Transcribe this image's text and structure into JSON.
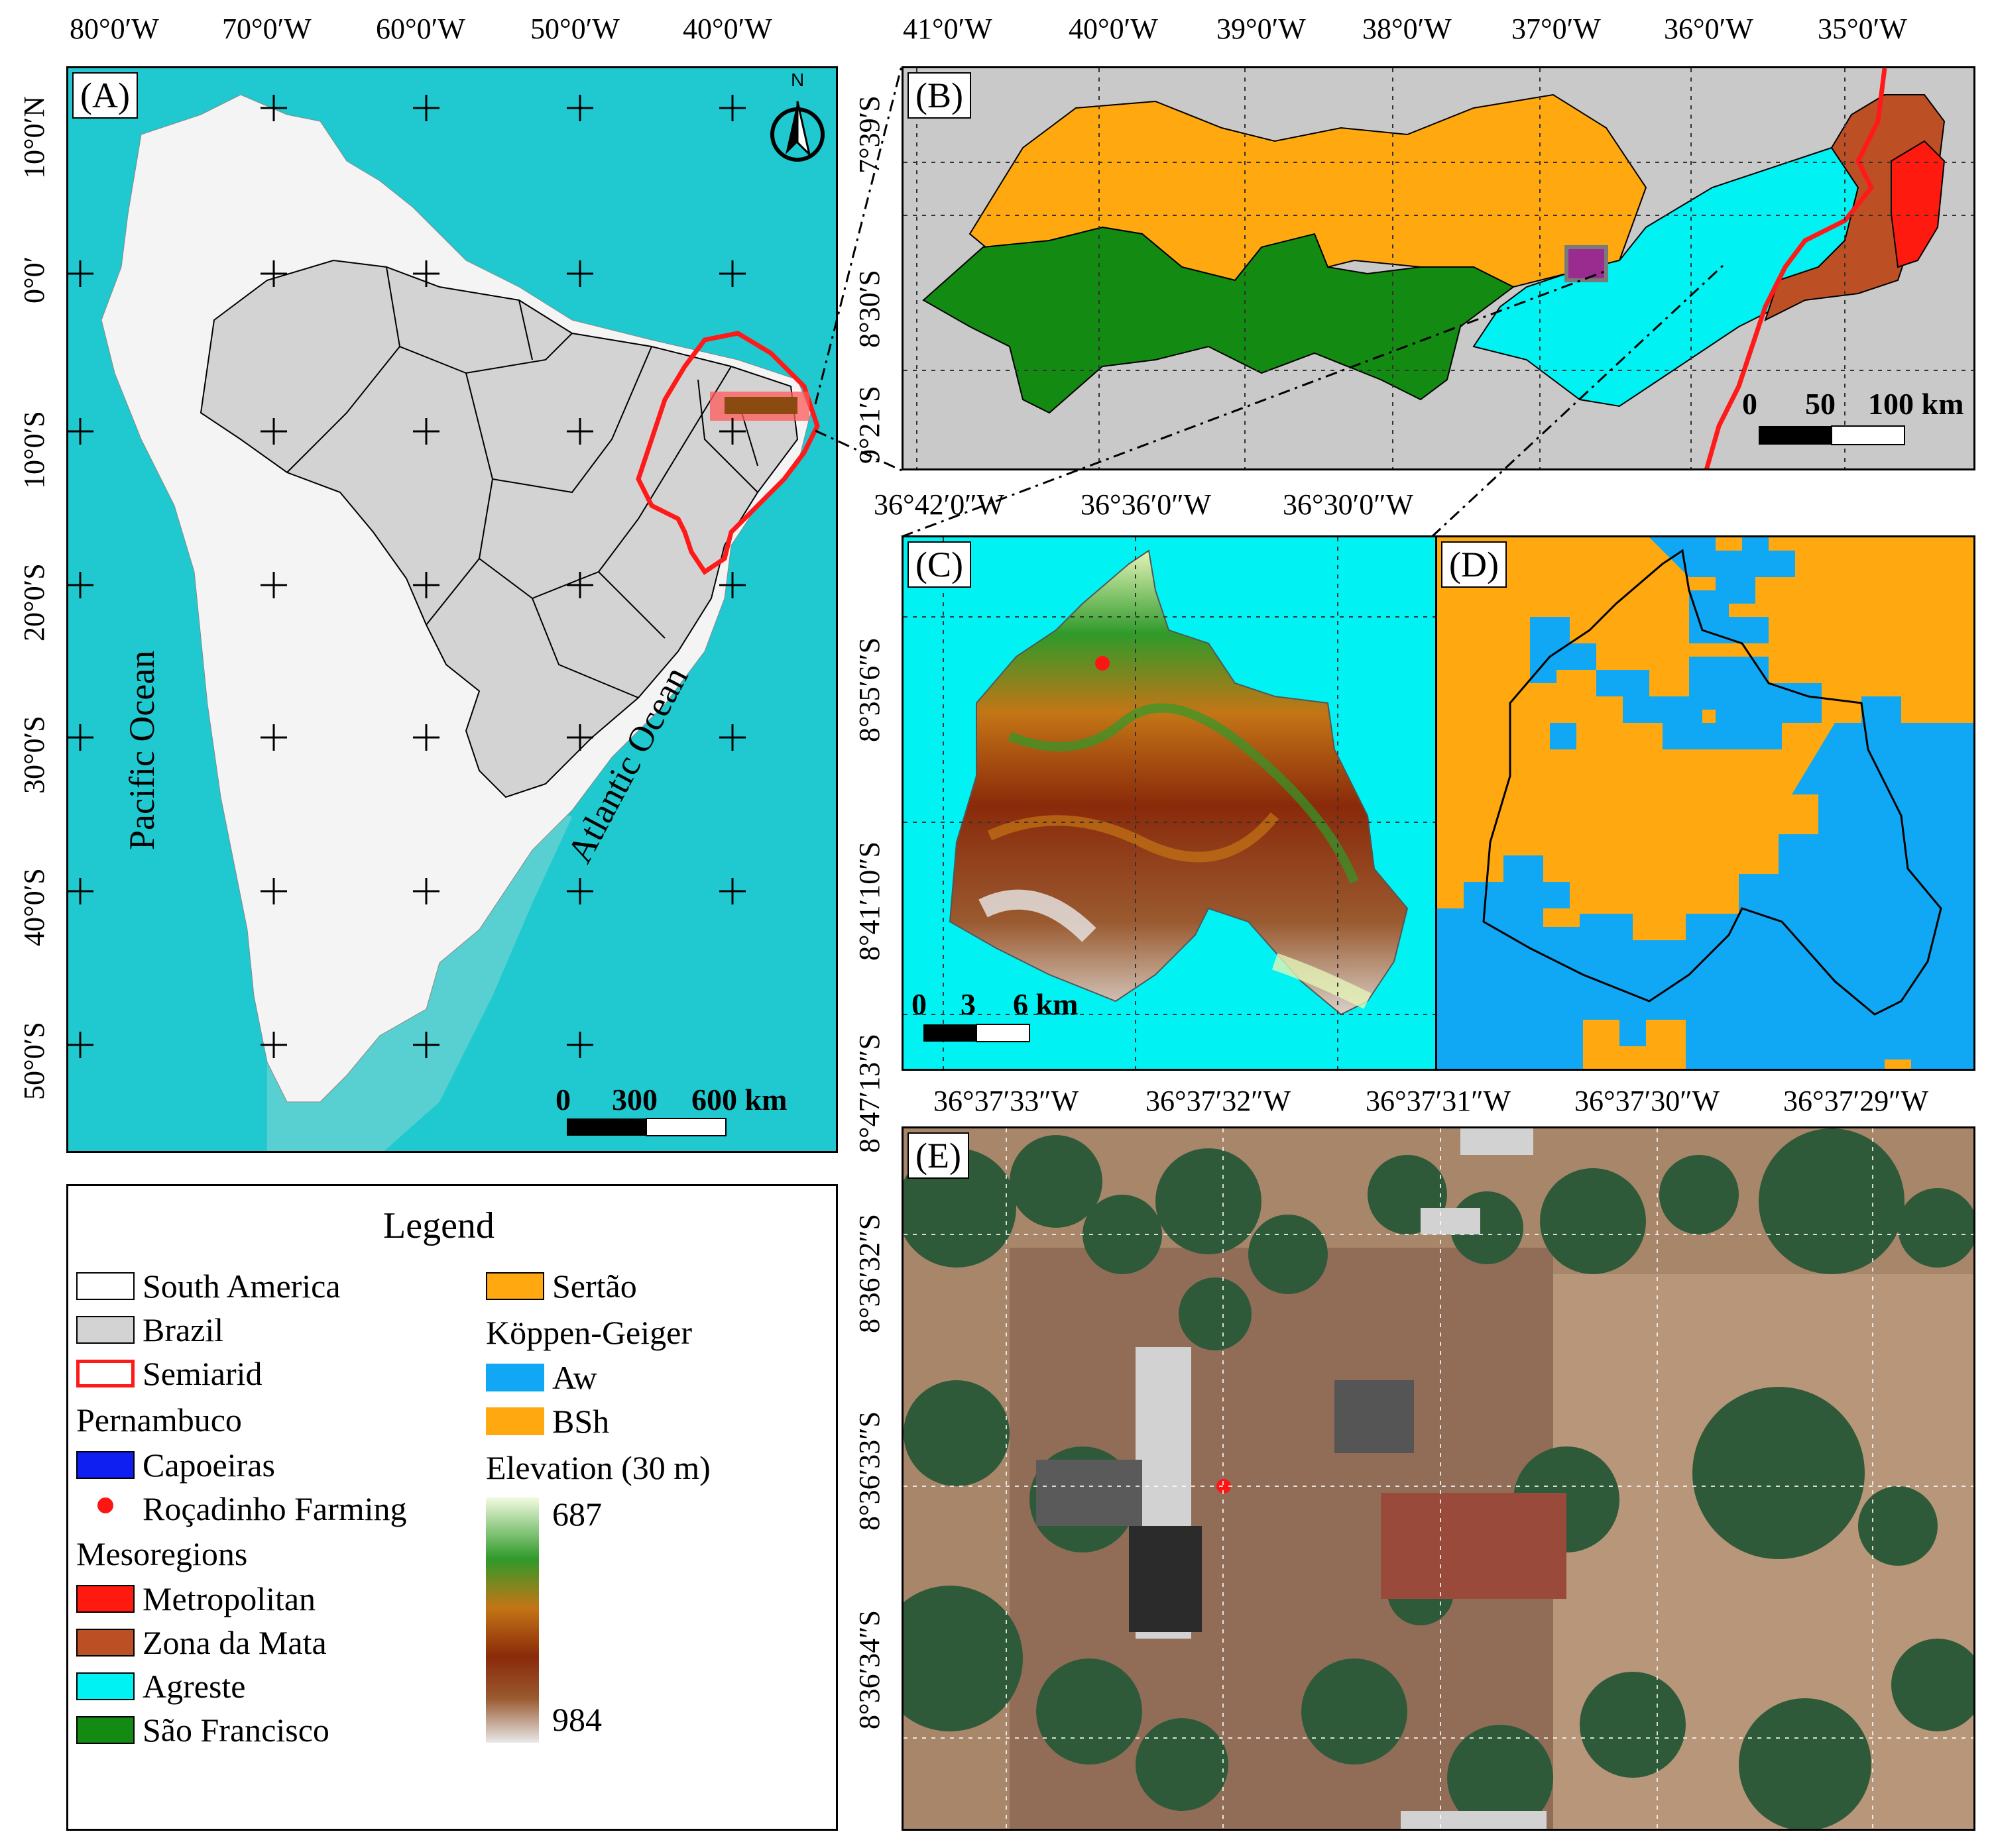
{
  "panelA": {
    "tag": "(A)",
    "lon_ticks": [
      "80°0′W",
      "70°0′W",
      "60°0′W",
      "50°0′W",
      "40°0′W"
    ],
    "lat_ticks": [
      "10°0′N",
      "0°0′",
      "10°0′S",
      "20°0′S",
      "30°0′S",
      "40°0′S",
      "50°0′S"
    ],
    "pacific": "Pacific Ocean",
    "atlantic": "Atlantic Ocean",
    "north": "N",
    "scale": [
      "0",
      "300",
      "600 km"
    ]
  },
  "panelB": {
    "tag": "(B)",
    "lon_ticks": [
      "41°0′W",
      "40°0′W",
      "39°0′W",
      "38°0′W",
      "37°0′W",
      "36°0′W",
      "35°0′W"
    ],
    "lat_ticks": [
      "7°39′S",
      "8°30′S",
      "9°21′S"
    ],
    "scale": [
      "0",
      "50",
      "100 km"
    ]
  },
  "panelC": {
    "tag": "(C)",
    "lon_ticks": [
      "36°42′0″W",
      "36°36′0″W",
      "36°30′0″W"
    ],
    "lat_ticks": [
      "8°35′6″S",
      "8°41′10″S",
      "8°47′13″S"
    ],
    "scale": [
      "0",
      "3",
      "6 km"
    ]
  },
  "panelD": {
    "tag": "(D)"
  },
  "panelE": {
    "tag": "(E)",
    "lon_ticks": [
      "36°37′33″W",
      "36°37′32″W",
      "36°37′31″W",
      "36°37′30″W",
      "36°37′29″W"
    ],
    "lat_ticks": [
      "8°36′32″S",
      "8°36′33″S",
      "8°36′34″S"
    ]
  },
  "legend": {
    "title": "Legend",
    "south_america": "South America",
    "brazil": "Brazil",
    "semiarid": "Semiarid",
    "pernambuco": "Pernambuco",
    "capoeiras": "Capoeiras",
    "farming": "Roçadinho Farming",
    "mesoregions": "Mesoregions",
    "metropolitan": "Metropolitan",
    "zona_da_mata": "Zona da Mata",
    "agreste": "Agreste",
    "sao_francisco": "São Francisco",
    "sertao": "Sertão",
    "koppen": "Köppen-Geiger",
    "aw": "Aw",
    "bsh": "BSh",
    "elevation": "Elevation (30 m)",
    "elev_max": "687",
    "elev_min": "984"
  },
  "colors": {
    "ocean": "#1fc9cf",
    "land": "#f4f4f4",
    "brazil": "#d3d3d3",
    "semiarid": "#ff1a1a",
    "metropolitan": "#ff1a10",
    "zona_da_mata": "#bd4f25",
    "agreste": "#00f2f2",
    "sao_francisco": "#138a12",
    "sertao": "#ffa80f",
    "aw": "#10a8f4",
    "bsh": "#ffa80f",
    "capoeiras": "#0f1ff2",
    "farming": "#ff1414"
  }
}
